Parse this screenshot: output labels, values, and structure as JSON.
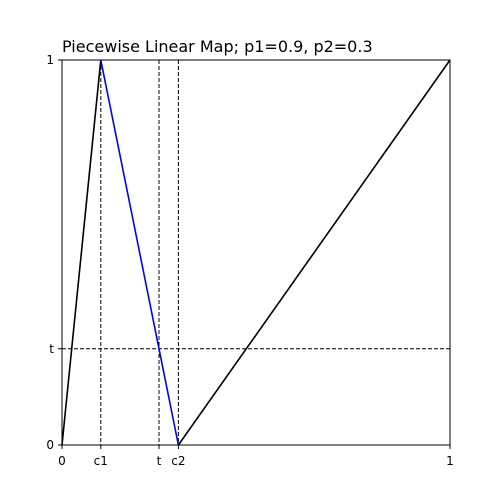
{
  "chart_data": {
    "type": "line",
    "title": "Piecewise Linear Map; p1=0.9, p2=0.3",
    "xlabel": "",
    "ylabel": "",
    "xlim": [
      0,
      1
    ],
    "ylim": [
      0,
      1
    ],
    "grid": false,
    "x_ticks": [
      {
        "value": 0,
        "label": "0"
      },
      {
        "value": 0.1,
        "label": "c1"
      },
      {
        "value": 0.25,
        "label": "t"
      },
      {
        "value": 0.3,
        "label": "c2"
      },
      {
        "value": 1,
        "label": "1"
      }
    ],
    "y_ticks": [
      {
        "value": 0,
        "label": "0"
      },
      {
        "value": 0.25,
        "label": "t"
      },
      {
        "value": 1,
        "label": "1"
      }
    ],
    "series": [
      {
        "color": "#000000",
        "x": [
          0,
          0.1
        ],
        "y": [
          0,
          1
        ]
      },
      {
        "color": "#0000ff",
        "x": [
          0.1,
          0.3
        ],
        "y": [
          1,
          0
        ]
      },
      {
        "color": "#000000",
        "x": [
          0.3,
          1
        ],
        "y": [
          0,
          1
        ]
      }
    ],
    "reference_lines": [
      {
        "orientation": "vertical",
        "value": 0.1,
        "style": "dashed"
      },
      {
        "orientation": "vertical",
        "value": 0.25,
        "style": "dashed"
      },
      {
        "orientation": "vertical",
        "value": 0.3,
        "style": "dashed"
      },
      {
        "orientation": "horizontal",
        "value": 0.25,
        "style": "dashed"
      }
    ]
  }
}
